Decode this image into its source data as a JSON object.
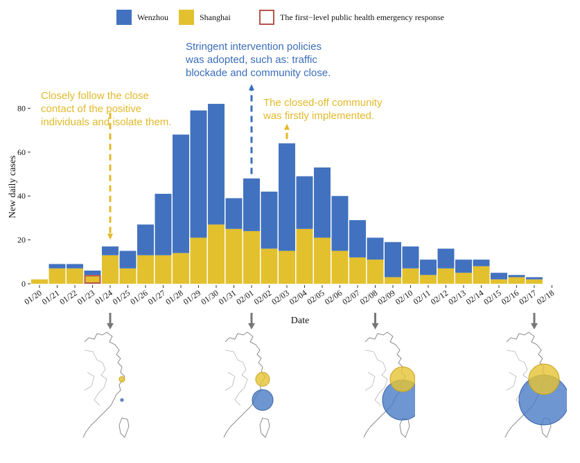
{
  "legend": {
    "items": [
      {
        "label": "Wenzhou",
        "color": "#4272bf",
        "type": "fill"
      },
      {
        "label": "Shanghai",
        "color": "#e3c02e",
        "type": "fill"
      },
      {
        "label": "The first−level public health emergency response",
        "color": "#b5524c",
        "type": "outline"
      }
    ]
  },
  "annotations": {
    "stringent": [
      "Stringent intervention policies",
      "was adopted, such as: traffic",
      "blockade and community close."
    ],
    "contact": [
      "Closely follow the close",
      "contact of the positive",
      "individuals and isolate them."
    ],
    "community": [
      "The closed-off community",
      "was firstly implemented."
    ]
  },
  "chart_data": {
    "type": "bar",
    "stacked": true,
    "xlabel": "Date",
    "ylabel": "New daily cases",
    "ylim": [
      0,
      85
    ],
    "yticks": [
      0,
      20,
      40,
      60,
      80
    ],
    "categories": [
      "01/20",
      "01/21",
      "01/22",
      "01/23",
      "01/24",
      "01/25",
      "01/26",
      "01/27",
      "01/28",
      "01/29",
      "01/30",
      "01/31",
      "02/01",
      "02/02",
      "02/03",
      "02/04",
      "02/05",
      "02/06",
      "02/07",
      "02/08",
      "02/09",
      "02/10",
      "02/11",
      "02/12",
      "02/13",
      "02/14",
      "02/15",
      "02/16",
      "02/17"
    ],
    "xtick_labels": [
      "01/20",
      "01/21",
      "01/22",
      "01/23",
      "01/24",
      "01/25",
      "01/26",
      "01/27",
      "01/28",
      "01/29",
      "01/30",
      "01/31",
      "02/01",
      "02/02",
      "02/03",
      "02/04",
      "02/05",
      "02/06",
      "02/07",
      "02/08",
      "02/09",
      "02/10",
      "02/11",
      "02/12",
      "02/13",
      "02/14",
      "02/15",
      "02/16",
      "02/17",
      "02/18"
    ],
    "series": [
      {
        "name": "Shanghai",
        "color": "#e3c02e",
        "values": [
          2,
          7,
          7,
          4,
          13,
          7,
          13,
          13,
          14,
          21,
          27,
          25,
          24,
          16,
          15,
          25,
          21,
          15,
          12,
          11,
          3,
          7,
          4,
          7,
          5,
          8,
          2,
          3,
          2
        ]
      },
      {
        "name": "Wenzhou",
        "color": "#4272bf",
        "values": [
          0,
          2,
          2,
          2,
          4,
          8,
          14,
          28,
          54,
          58,
          55,
          14,
          24,
          26,
          49,
          24,
          32,
          25,
          17,
          10,
          16,
          10,
          7,
          9,
          6,
          3,
          3,
          1,
          1
        ]
      }
    ],
    "highlight_category": "01/23",
    "highlight_color": "#b5524c",
    "arrows": [
      {
        "category": "01/24",
        "from_y": 78,
        "to_y": 20,
        "style": "dashed",
        "color": "#e2b92a"
      },
      {
        "category": "02/01",
        "from_y": 50,
        "to_y": 91,
        "style": "dashed",
        "color": "#3a6db9"
      },
      {
        "category": "02/03",
        "from_y": 66,
        "to_y": 73,
        "style": "dashed",
        "color": "#e2b92a"
      }
    ],
    "map_pointers": [
      "01/24",
      "02/01",
      "02/08",
      "02/17"
    ],
    "maps": [
      {
        "shanghai_size": 4,
        "wenzhou_size": 2
      },
      {
        "shanghai_size": 10,
        "wenzhou_size": 15
      },
      {
        "shanghai_size": 18,
        "wenzhou_size": 29
      },
      {
        "shanghai_size": 22,
        "wenzhou_size": 36
      }
    ]
  }
}
